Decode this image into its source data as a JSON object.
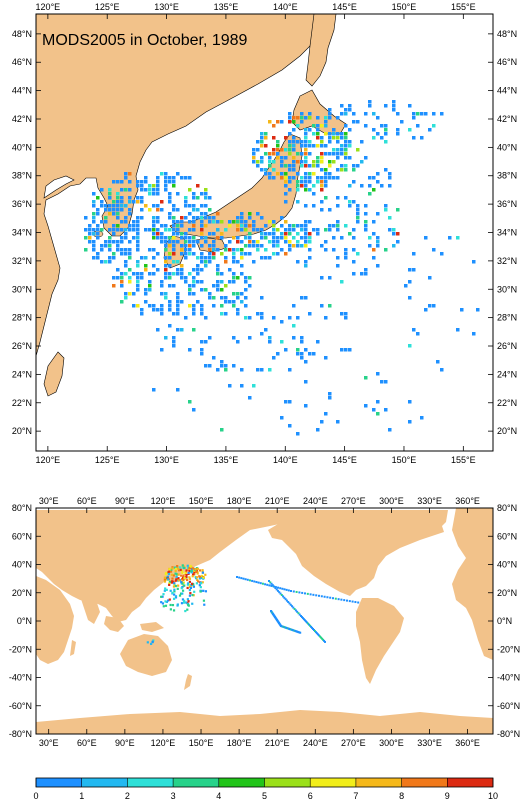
{
  "top_map": {
    "title": "MODS2005 in October, 1989",
    "lon_labels": [
      "120°E",
      "125°E",
      "130°E",
      "135°E",
      "140°E",
      "145°E",
      "150°E",
      "155°E"
    ],
    "lat_labels": [
      "20°N",
      "22°N",
      "24°N",
      "26°N",
      "28°N",
      "30°N",
      "32°N",
      "34°N",
      "36°N",
      "38°N",
      "40°N",
      "42°N",
      "44°N",
      "46°N",
      "48°N"
    ],
    "lon_range": [
      119,
      157.5
    ],
    "lat_range": [
      18.6,
      49.4
    ]
  },
  "bottom_map": {
    "lon_labels": [
      "30°E",
      "60°E",
      "90°E",
      "120°E",
      "150°E",
      "180°E",
      "210°E",
      "240°E",
      "270°E",
      "300°E",
      "330°E",
      "360°E"
    ],
    "lat_labels": [
      "-80°N",
      "-60°N",
      "-40°N",
      "-20°N",
      "0°N",
      "20°N",
      "40°N",
      "60°N",
      "80°N"
    ],
    "lon_range": [
      20,
      380
    ],
    "lat_range": [
      -80,
      80
    ]
  },
  "colorbar": {
    "ticks": [
      "0",
      "1",
      "2",
      "3",
      "4",
      "5",
      "6",
      "7",
      "8",
      "9",
      "10"
    ],
    "colors": [
      "#1f5fd6",
      "#1e90ff",
      "#22b8f0",
      "#2ee0d8",
      "#27d28a",
      "#22c41a",
      "#9be01a",
      "#f2ee1a",
      "#f5b81a",
      "#f0781a",
      "#dc2a12"
    ]
  },
  "colors": {
    "land": "#f2c28a",
    "ocean": "#ffffff",
    "coast": "#000000"
  }
}
